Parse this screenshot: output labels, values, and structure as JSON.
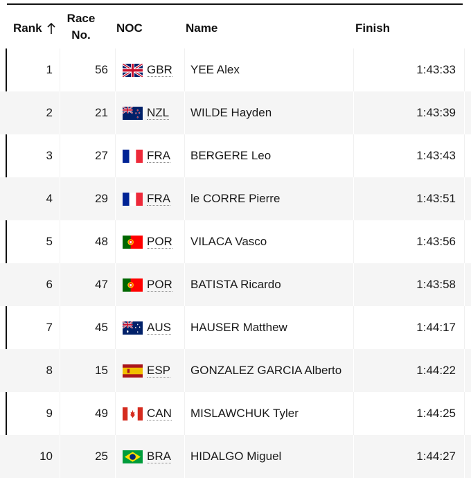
{
  "header": {
    "rank": "Rank",
    "race_line1": "Race",
    "race_line2": "No.",
    "noc": "NOC",
    "name": "Name",
    "finish": "Finish",
    "sort_icon": "arrow-up-icon"
  },
  "rows": [
    {
      "rank": "1",
      "race": "56",
      "noc": "GBR",
      "flag": "gbr-flag-icon",
      "name": "YEE Alex",
      "finish": "1:43:33"
    },
    {
      "rank": "2",
      "race": "21",
      "noc": "NZL",
      "flag": "nzl-flag-icon",
      "name": "WILDE Hayden",
      "finish": "1:43:39"
    },
    {
      "rank": "3",
      "race": "27",
      "noc": "FRA",
      "flag": "fra-flag-icon",
      "name": "BERGERE Leo",
      "finish": "1:43:43"
    },
    {
      "rank": "4",
      "race": "29",
      "noc": "FRA",
      "flag": "fra-flag-icon",
      "name": "le CORRE Pierre",
      "finish": "1:43:51"
    },
    {
      "rank": "5",
      "race": "48",
      "noc": "POR",
      "flag": "por-flag-icon",
      "name": "VILACA Vasco",
      "finish": "1:43:56"
    },
    {
      "rank": "6",
      "race": "47",
      "noc": "POR",
      "flag": "por-flag-icon",
      "name": "BATISTA Ricardo",
      "finish": "1:43:58"
    },
    {
      "rank": "7",
      "race": "45",
      "noc": "AUS",
      "flag": "aus-flag-icon",
      "name": "HAUSER Matthew",
      "finish": "1:44:17"
    },
    {
      "rank": "8",
      "race": "15",
      "noc": "ESP",
      "flag": "esp-flag-icon",
      "name": "GONZALEZ GARCIA Alberto",
      "finish": "1:44:22"
    },
    {
      "rank": "9",
      "race": "49",
      "noc": "CAN",
      "flag": "can-flag-icon",
      "name": "MISLAWCHUK Tyler",
      "finish": "1:44:25"
    },
    {
      "rank": "10",
      "race": "25",
      "noc": "BRA",
      "flag": "bra-flag-icon",
      "name": "HIDALGO Miguel",
      "finish": "1:44:27"
    }
  ]
}
